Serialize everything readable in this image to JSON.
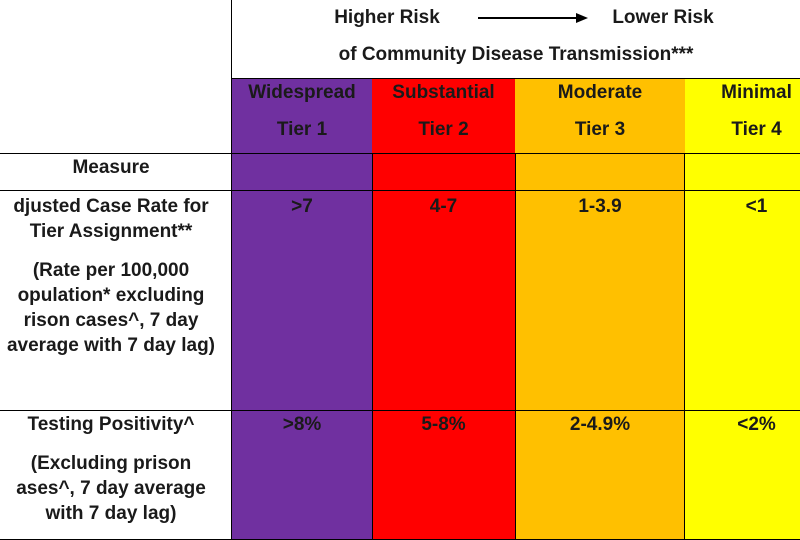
{
  "header": {
    "higher_risk": "Higher Risk",
    "lower_risk": "Lower Risk",
    "subtitle": "of Community Disease Transmission***"
  },
  "tiers": [
    {
      "name": "Widespread",
      "tier": "Tier 1",
      "color": "#7030A0"
    },
    {
      "name": "Substantial",
      "tier": "Tier 2",
      "color": "#FF0000"
    },
    {
      "name": "Moderate",
      "tier": "Tier 3",
      "color": "#FFC000"
    },
    {
      "name": "Minimal",
      "tier": "Tier 4",
      "color": "#FFFF00"
    }
  ],
  "measure_header": "Measure",
  "rows": [
    {
      "measure_lines": [
        "djusted Case Rate for",
        "Tier Assignment**"
      ],
      "note_lines": [
        "(Rate per 100,000",
        "opulation* excluding",
        "rison cases^, 7 day",
        "average with 7 day lag)"
      ],
      "values": [
        ">7",
        "4-7",
        "1-3.9",
        "<1"
      ]
    },
    {
      "measure_lines": [
        "Testing Positivity^"
      ],
      "note_lines": [
        "(Excluding prison",
        "ases^, 7 day average",
        "with 7 day lag)"
      ],
      "values": [
        ">8%",
        "5-8%",
        "2-4.9%",
        "<2%"
      ]
    }
  ]
}
